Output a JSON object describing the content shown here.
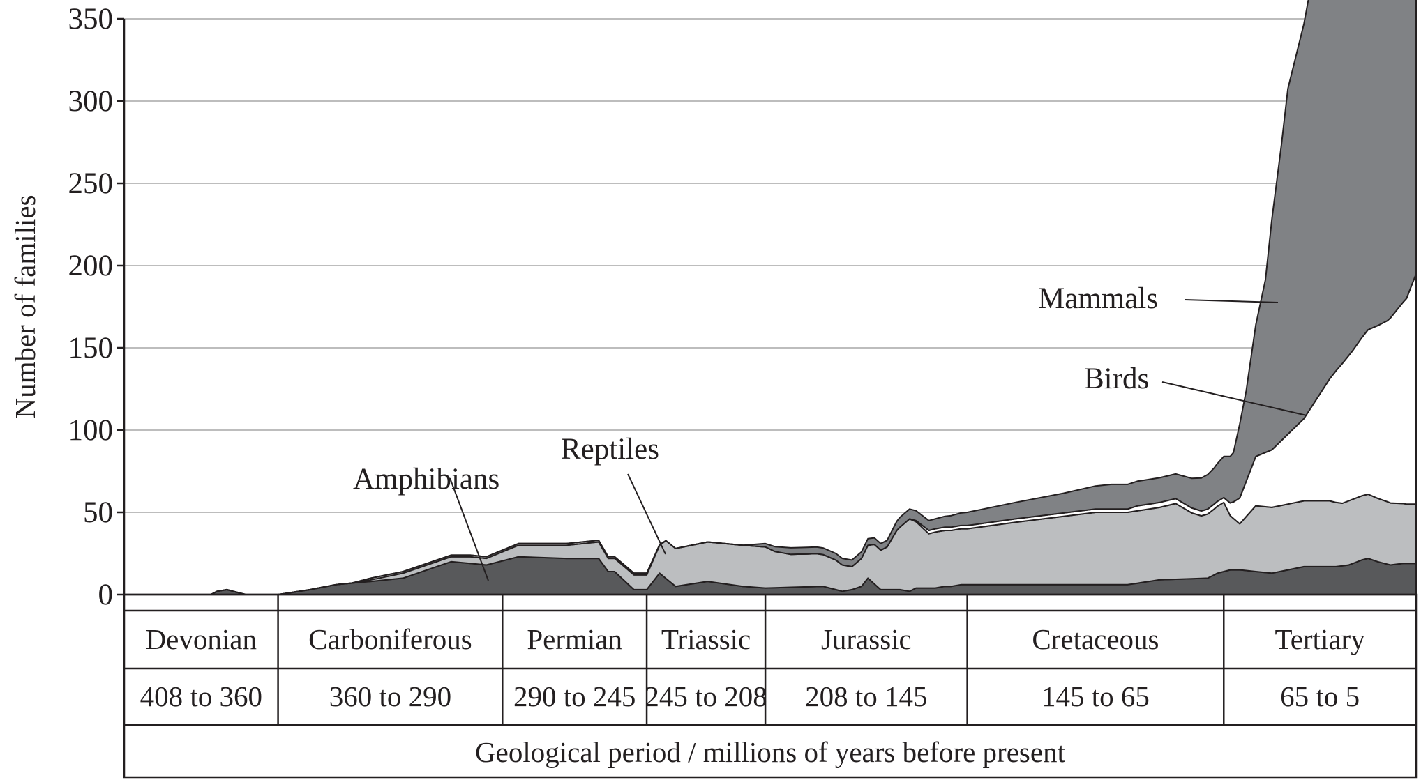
{
  "chart_data": {
    "type": "area",
    "stacked": true,
    "ylabel": "Number of families",
    "xlabel": "Geological period / millions of years before present",
    "ylim": [
      0,
      350
    ],
    "yticks": [
      0,
      50,
      100,
      150,
      200,
      250,
      300,
      350
    ],
    "xlim": [
      408,
      5
    ],
    "x_axis_direction": "reversed (older on the left)",
    "grid": "horizontal lines",
    "periods": [
      {
        "name": "Devonian",
        "range": "408 to 360",
        "start": 408,
        "end": 360
      },
      {
        "name": "Carboniferous",
        "range": "360 to 290",
        "start": 360,
        "end": 290
      },
      {
        "name": "Permian",
        "range": "290 to 245",
        "start": 290,
        "end": 245
      },
      {
        "name": "Triassic",
        "range": "245 to 208",
        "start": 245,
        "end": 208
      },
      {
        "name": "Jurassic",
        "range": "208 to 145",
        "start": 208,
        "end": 145
      },
      {
        "name": "Cretaceous",
        "range": "145 to 65",
        "start": 145,
        "end": 65
      },
      {
        "name": "Tertiary",
        "range": "65 to 5",
        "start": 65,
        "end": 5
      }
    ],
    "series": [
      {
        "name": "Amphibians",
        "color": "#58595b",
        "x": [
          381,
          379,
          376,
          374,
          370,
          360,
          350,
          342,
          337,
          331,
          321,
          306,
          300,
          295,
          285,
          270,
          260,
          257,
          255,
          249,
          245,
          241,
          236,
          226,
          215,
          208,
          190,
          186,
          184,
          181,
          178,
          176,
          172,
          166,
          163,
          161,
          157,
          155,
          152,
          150,
          147,
          145,
          130,
          105,
          95,
          85,
          70,
          67,
          63,
          60,
          55,
          50,
          40,
          36,
          30,
          26,
          22,
          20,
          17,
          13,
          9,
          5
        ],
        "values": [
          0,
          2,
          3,
          2,
          0,
          0,
          3,
          6,
          7,
          8,
          10,
          20,
          19,
          18,
          23,
          22,
          22,
          14,
          14,
          3,
          3,
          13,
          5,
          8,
          5,
          4,
          5,
          3,
          2,
          3,
          5,
          10,
          3,
          3,
          2,
          4,
          4,
          4,
          5,
          5,
          6,
          6,
          6,
          6,
          6,
          9,
          10,
          13,
          15,
          15,
          14,
          13,
          17,
          17,
          17,
          18,
          21,
          22,
          20,
          18,
          19,
          19
        ]
      },
      {
        "name": "Reptiles",
        "color": "#bcbec0",
        "x": [
          360,
          342,
          337,
          331,
          321,
          306,
          300,
          295,
          285,
          270,
          260,
          257,
          255,
          249,
          245,
          241,
          239,
          236,
          226,
          215,
          208,
          205,
          200,
          198,
          192,
          186,
          184,
          181,
          178,
          176,
          174,
          172,
          170,
          167,
          163,
          157,
          155,
          152,
          147,
          145,
          130,
          105,
          95,
          85,
          80,
          75,
          72,
          68,
          65,
          63,
          60,
          55,
          50,
          40,
          36,
          32,
          28,
          26,
          20,
          14,
          8,
          5
        ],
        "values": [
          0,
          0,
          0,
          1,
          3,
          3,
          4,
          4,
          7,
          8,
          10,
          8,
          8,
          9,
          9,
          17,
          23,
          23,
          24,
          25,
          25,
          22,
          20,
          20,
          20,
          18,
          16,
          14,
          17,
          20,
          24,
          24,
          26,
          36,
          44,
          33,
          34,
          34,
          34,
          34,
          38,
          44,
          44,
          44,
          46,
          40,
          38,
          40,
          42,
          33,
          28,
          40,
          40,
          40,
          40,
          40,
          38,
          39,
          39,
          38,
          36,
          36
        ]
      },
      {
        "name": "Birds",
        "color": "#ffffff",
        "x": [
          360,
          337,
          331,
          321,
          300,
          285,
          270,
          249,
          245,
          239,
          236,
          163,
          160,
          157,
          147,
          130,
          115,
          105,
          95,
          92,
          85,
          80,
          75,
          72,
          70,
          67,
          65,
          62,
          55,
          50,
          40,
          30,
          28,
          25,
          20,
          14,
          8,
          5
        ],
        "values": [
          0,
          0,
          1,
          1,
          1,
          1,
          1,
          1,
          1,
          0,
          0,
          0,
          1,
          2,
          2,
          2,
          2,
          2,
          2,
          3,
          3,
          3,
          3,
          3,
          3,
          3,
          3,
          10,
          30,
          35,
          50,
          80,
          85,
          90,
          100,
          110,
          125,
          140
        ]
      },
      {
        "name": "Mammals",
        "color": "#808285",
        "x": [
          255,
          249,
          245,
          239,
          236,
          226,
          215,
          208,
          205,
          200,
          198,
          195,
          192,
          190,
          186,
          184,
          181,
          178,
          176,
          174,
          172,
          170,
          168,
          166,
          163,
          161,
          157,
          155,
          150,
          145,
          130,
          115,
          105,
          100,
          95,
          90,
          85,
          80,
          75,
          72,
          68,
          65,
          62,
          60,
          58,
          55,
          52,
          50,
          47,
          45,
          40,
          36,
          32,
          30,
          28,
          25,
          20,
          14,
          8,
          5
        ],
        "values": [
          0,
          0,
          0,
          0,
          0,
          0,
          0,
          2,
          3,
          4,
          4,
          4,
          4,
          4,
          4,
          4,
          4,
          4,
          4,
          4,
          4,
          4,
          5,
          6,
          6,
          6,
          6,
          6,
          7,
          8,
          10,
          12,
          14,
          15,
          15,
          15,
          15,
          15,
          18,
          20,
          22,
          25,
          30,
          45,
          55,
          80,
          105,
          140,
          180,
          210,
          240,
          270,
          285,
          300,
          315,
          330,
          320,
          325,
          320,
          330
        ]
      }
    ],
    "annotations": [
      "Mammals",
      "Birds",
      "Reptiles",
      "Amphibians"
    ]
  }
}
